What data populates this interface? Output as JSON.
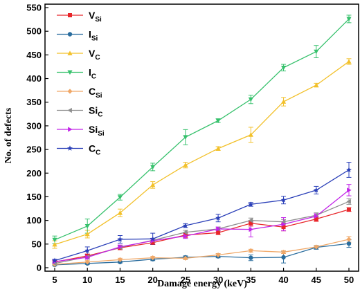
{
  "chart_data": {
    "type": "line",
    "title": "",
    "xlabel": "Damage energy (keV)",
    "ylabel": "No. of defects",
    "xlim": [
      5,
      50
    ],
    "ylim": [
      0,
      550
    ],
    "x": [
      5,
      10,
      15,
      20,
      25,
      30,
      35,
      40,
      45,
      50
    ],
    "x_ticks": [
      "5",
      "10",
      "15",
      "20",
      "25",
      "30",
      "35",
      "40",
      "45",
      "50"
    ],
    "y_ticks": [
      "0",
      "50",
      "100",
      "150",
      "200",
      "250",
      "300",
      "350",
      "400",
      "450",
      "500",
      "550"
    ],
    "grid": false,
    "error_bars": true,
    "legend_position": "top-left",
    "series": [
      {
        "name_main": "V",
        "name_sub": "Si",
        "color": "#e8262a",
        "marker": "square",
        "values": [
          12,
          25,
          42,
          53,
          69,
          74,
          94,
          86,
          103,
          123
        ],
        "errors": [
          3,
          4,
          4,
          4,
          5,
          4,
          6,
          8,
          5,
          4
        ]
      },
      {
        "name_main": "I",
        "name_sub": "Si",
        "color": "#2a6d9e",
        "marker": "circle",
        "values": [
          6,
          9,
          12,
          18,
          22,
          24,
          21,
          22,
          43,
          51
        ],
        "errors": [
          2,
          2,
          2,
          3,
          3,
          3,
          6,
          12,
          4,
          8
        ]
      },
      {
        "name_main": "V",
        "name_sub": "C",
        "color": "#f2c029",
        "marker": "triangle-up",
        "values": [
          49,
          71,
          116,
          175,
          217,
          252,
          281,
          351,
          386,
          436
        ],
        "errors": [
          8,
          8,
          8,
          7,
          6,
          4,
          16,
          9,
          4,
          6
        ]
      },
      {
        "name_main": "I",
        "name_sub": "C",
        "color": "#36c16c",
        "marker": "triangle-down",
        "values": [
          59,
          88,
          149,
          213,
          276,
          311,
          356,
          423,
          457,
          526
        ],
        "errors": [
          8,
          15,
          6,
          8,
          16,
          4,
          9,
          7,
          13,
          8
        ]
      },
      {
        "name_main": "C",
        "name_sub": "Si",
        "color": "#f0a868",
        "marker": "diamond",
        "values": [
          7,
          12,
          17,
          21,
          20,
          27,
          36,
          33,
          44,
          60
        ],
        "errors": [
          2,
          3,
          3,
          3,
          3,
          3,
          3,
          3,
          3,
          6
        ]
      },
      {
        "name_main": "Si",
        "name_sub": "C",
        "color": "#8e8e8e",
        "marker": "triangle-left",
        "values": [
          9,
          23,
          43,
          58,
          75,
          82,
          100,
          97,
          111,
          140
        ],
        "errors": [
          3,
          4,
          4,
          4,
          4,
          4,
          5,
          5,
          5,
          6
        ]
      },
      {
        "name_main": "Si",
        "name_sub": "Si",
        "color": "#c224e8",
        "marker": "triangle-right",
        "values": [
          13,
          22,
          44,
          57,
          67,
          82,
          81,
          92,
          109,
          164
        ],
        "errors": [
          3,
          4,
          4,
          4,
          5,
          4,
          16,
          14,
          5,
          12
        ]
      },
      {
        "name_main": "C",
        "name_sub": "C",
        "color": "#2a3fb8",
        "marker": "star",
        "values": [
          15,
          36,
          60,
          61,
          89,
          105,
          134,
          143,
          164,
          207
        ],
        "errors": [
          3,
          8,
          8,
          12,
          4,
          8,
          4,
          8,
          8,
          16
        ]
      }
    ]
  }
}
